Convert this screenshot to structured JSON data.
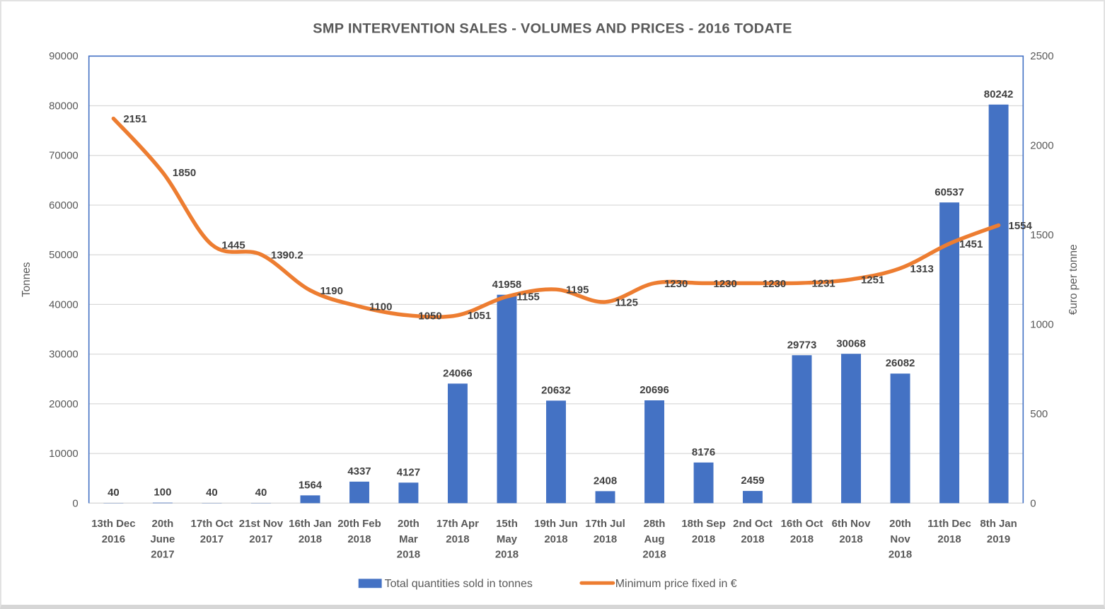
{
  "chart_data": {
    "type": "combo-bar-line",
    "title": "SMP INTERVENTION SALES - VOLUMES AND PRICES - 2016 TODATE",
    "categories": [
      [
        "13th Dec",
        "2016"
      ],
      [
        "20th",
        "June",
        "2017"
      ],
      [
        "17th Oct",
        "2017"
      ],
      [
        "21st Nov",
        "2017"
      ],
      [
        "16th Jan",
        "2018"
      ],
      [
        "20th Feb",
        "2018"
      ],
      [
        "20th",
        "Mar",
        "2018"
      ],
      [
        "17th Apr",
        "2018"
      ],
      [
        "15th",
        "May",
        "2018"
      ],
      [
        "19th Jun",
        "2018"
      ],
      [
        "17th Jul",
        "2018"
      ],
      [
        "28th",
        "Aug",
        "2018"
      ],
      [
        "18th Sep",
        "2018"
      ],
      [
        "2nd Oct",
        "2018"
      ],
      [
        "16th Oct",
        "2018"
      ],
      [
        "6th Nov",
        "2018"
      ],
      [
        "20th",
        "Nov",
        "2018"
      ],
      [
        "11th Dec",
        "2018"
      ],
      [
        "8th Jan",
        "2019"
      ]
    ],
    "series": [
      {
        "name": "Total quantities sold in tonnes",
        "type": "bar",
        "axis": "left",
        "color": "#4472C4",
        "values": [
          40,
          100,
          40,
          40,
          1564,
          4337,
          4127,
          24066,
          41958,
          20632,
          2408,
          20696,
          8176,
          2459,
          29773,
          30068,
          26082,
          60537,
          80242
        ]
      },
      {
        "name": "Minimum price fixed in €",
        "type": "line",
        "axis": "right",
        "color": "#ED7D31",
        "smoothed": true,
        "values": [
          2151,
          1850,
          1445,
          1390.2,
          1190,
          1100,
          1050,
          1051,
          1155,
          1195,
          1125,
          1230,
          1230,
          1230,
          1231,
          1251,
          1313,
          1451,
          1554
        ]
      }
    ],
    "left_axis": {
      "title": "Tonnes",
      "min": 0,
      "max": 90000,
      "step": 10000,
      "ticks": [
        "0",
        "10000",
        "20000",
        "30000",
        "40000",
        "50000",
        "60000",
        "70000",
        "80000",
        "90000"
      ]
    },
    "right_axis": {
      "title": "€uro per tonne",
      "min": 0,
      "max": 2500,
      "step": 500,
      "ticks": [
        "0",
        "500",
        "1000",
        "1500",
        "2000",
        "2500"
      ]
    },
    "grid": "horizontal",
    "legend_position": "bottom",
    "colors": {
      "bar": "#4472C4",
      "line": "#ED7D31",
      "gridline": "#D9D9D9",
      "plot_border": "#4472C4",
      "axis_line": "#D9D9D9",
      "axis_text": "#595959",
      "x_label_text": "#595959",
      "data_label": "#404040",
      "title_text": "#595959",
      "legend_text": "#595959"
    }
  }
}
